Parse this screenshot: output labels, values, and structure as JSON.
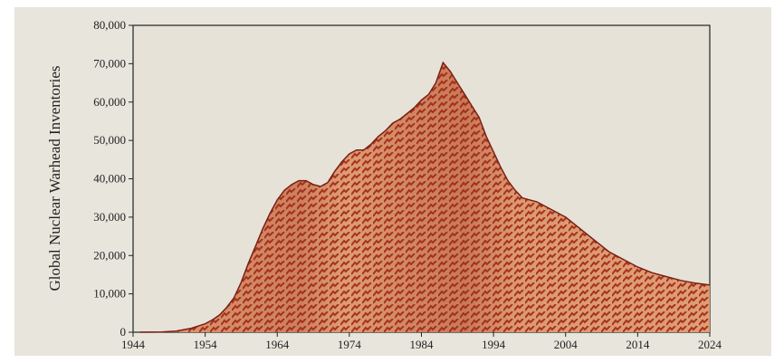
{
  "chart_data": {
    "type": "area",
    "title": "",
    "xlabel": "",
    "ylabel": "Global Nuclear Warhead Inventories",
    "xlim": [
      1944,
      2024
    ],
    "ylim": [
      0,
      80000
    ],
    "x_ticks": [
      "1944",
      "1954",
      "1964",
      "1974",
      "1984",
      "1994",
      "2004",
      "2014",
      "2024"
    ],
    "y_ticks": [
      "0",
      "10,000",
      "20,000",
      "30,000",
      "40,000",
      "50,000",
      "60,000",
      "70,000",
      "80,000"
    ],
    "grid": false,
    "colors": {
      "fill": "#d98a5e",
      "fill_dark": "#b5482b",
      "line": "#7a1f12",
      "background": "#e8e5dd"
    },
    "series": [
      {
        "x": [
          1945,
          1948,
          1950,
          1952,
          1954,
          1955,
          1956,
          1957,
          1958,
          1959,
          1960,
          1961,
          1962,
          1963,
          1964,
          1965,
          1966,
          1967,
          1968,
          1969,
          1970,
          1971,
          1972,
          1973,
          1974,
          1975,
          1976,
          1977,
          1978,
          1979,
          1980,
          1981,
          1982,
          1983,
          1984,
          1985,
          1986,
          1987,
          1988,
          1989,
          1990,
          1991,
          1992,
          1993,
          1994,
          1995,
          1996,
          1997,
          1998,
          1999,
          2000,
          2002,
          2004,
          2006,
          2008,
          2010,
          2012,
          2014,
          2016,
          2018,
          2020,
          2022,
          2024
        ],
        "values": [
          2,
          50,
          300,
          1000,
          2200,
          3200,
          4500,
          6500,
          9000,
          13000,
          18000,
          22500,
          27000,
          31000,
          34500,
          37000,
          38500,
          39500,
          39500,
          38500,
          38000,
          39000,
          42000,
          44500,
          46500,
          47500,
          47500,
          49000,
          51000,
          52500,
          54500,
          55500,
          57000,
          58500,
          60500,
          62000,
          65000,
          70300,
          68000,
          65000,
          62000,
          59000,
          56000,
          51000,
          47000,
          43000,
          39500,
          37000,
          35000,
          34500,
          34000,
          32000,
          30000,
          27000,
          24000,
          21000,
          19000,
          17000,
          15500,
          14500,
          13500,
          12800,
          12300
        ]
      }
    ]
  }
}
